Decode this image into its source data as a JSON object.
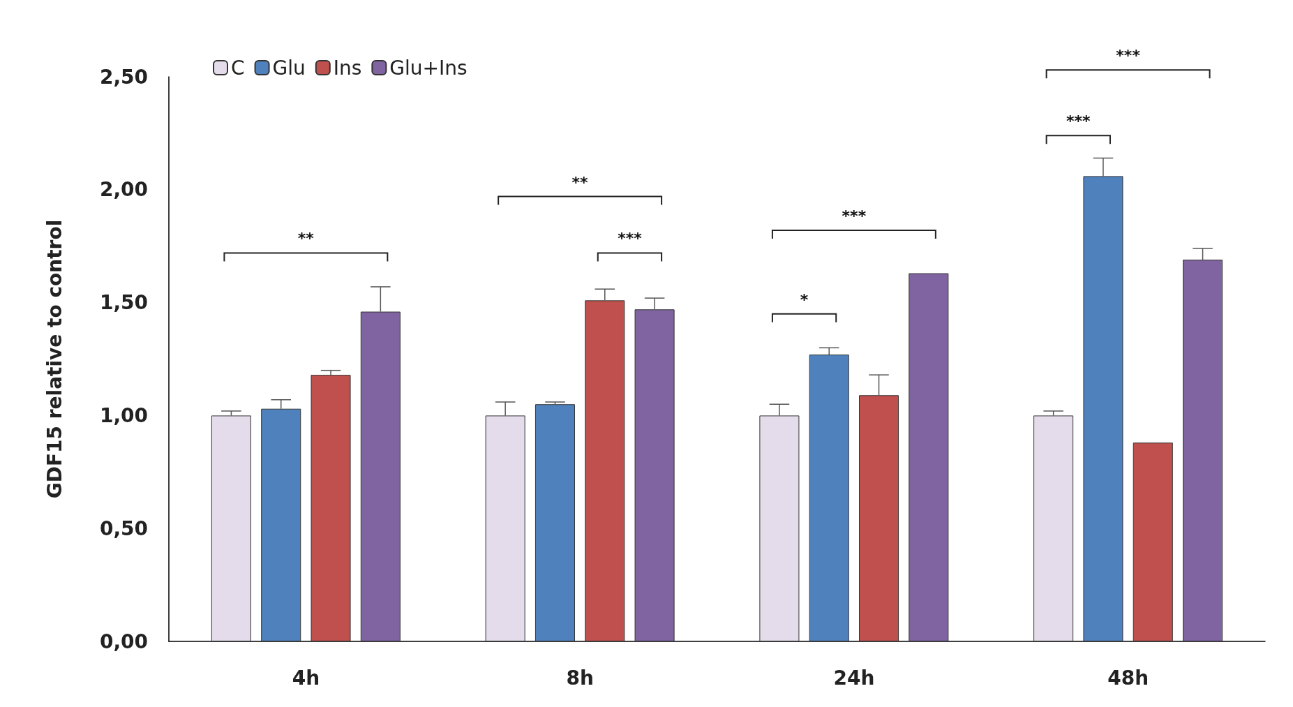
{
  "chart_data": {
    "type": "bar",
    "categories": [
      "4h",
      "8h",
      "24h",
      "48h"
    ],
    "ylabel": "GDF15 relative to control",
    "ylim": [
      0,
      2.5
    ],
    "yticks": [
      {
        "value": 0,
        "label": "0,00"
      },
      {
        "value": 0.5,
        "label": "0,50"
      },
      {
        "value": 1,
        "label": "1,00"
      },
      {
        "value": 1.5,
        "label": "1,50"
      },
      {
        "value": 2,
        "label": "2,00"
      },
      {
        "value": 2.5,
        "label": "2,50"
      }
    ],
    "series": [
      {
        "name": "C",
        "color": "#e4dcea",
        "values": [
          1.0,
          1.0,
          1.0,
          1.0
        ],
        "errors": [
          [
            1.0,
            1.02
          ],
          [
            1.0,
            1.06
          ],
          [
            1.0,
            1.05
          ],
          [
            1.0,
            1.02
          ]
        ]
      },
      {
        "name": "Glu",
        "color": "#4f81bd",
        "values": [
          1.03,
          1.05,
          1.27,
          2.06
        ],
        "errors": [
          [
            1.03,
            1.07
          ],
          [
            1.05,
            1.06
          ],
          [
            1.27,
            1.3
          ],
          [
            2.06,
            2.14
          ]
        ]
      },
      {
        "name": "Ins",
        "color": "#c0504d",
        "values": [
          1.18,
          1.51,
          1.09,
          0.88
        ],
        "errors": [
          [
            1.18,
            1.2
          ],
          [
            1.51,
            1.56
          ],
          [
            1.09,
            1.18
          ],
          null
        ]
      },
      {
        "name": "Glu+Ins",
        "color": "#8064a2",
        "values": [
          1.46,
          1.47,
          1.63,
          1.69
        ],
        "errors": [
          [
            1.46,
            1.57
          ],
          [
            1.47,
            1.52
          ],
          null,
          [
            1.69,
            1.74
          ]
        ]
      }
    ],
    "annotations": [
      "**",
      "**",
      "***",
      "***",
      "*",
      "***",
      "***"
    ],
    "legend": "top left",
    "grid": false
  }
}
